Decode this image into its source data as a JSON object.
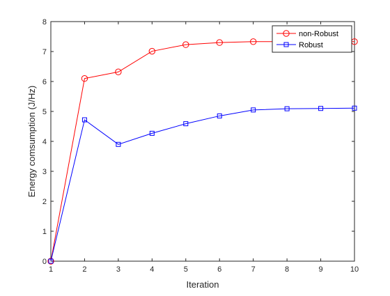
{
  "chart_data": {
    "type": "line",
    "title": "",
    "xlabel": "Iteration",
    "ylabel": "Energy comsumption (J/Hz)",
    "xlim": [
      1,
      10
    ],
    "ylim": [
      0,
      8
    ],
    "xticks": [
      1,
      2,
      3,
      4,
      5,
      6,
      7,
      8,
      9,
      10
    ],
    "yticks": [
      0,
      1,
      2,
      3,
      4,
      5,
      6,
      7,
      8
    ],
    "grid": false,
    "legend_position": "top-right",
    "x": [
      1,
      2,
      3,
      4,
      5,
      6,
      7,
      8,
      9,
      10
    ],
    "series": [
      {
        "name": "non-Robust",
        "color": "#ff0000",
        "marker": "circle",
        "values": [
          0,
          6.1,
          6.32,
          7.01,
          7.23,
          7.3,
          7.33,
          7.33,
          7.33,
          7.33
        ]
      },
      {
        "name": "Robust",
        "color": "#0000ff",
        "marker": "square",
        "values": [
          0,
          4.72,
          3.9,
          4.27,
          4.59,
          4.85,
          5.05,
          5.09,
          5.1,
          5.11
        ]
      }
    ]
  }
}
